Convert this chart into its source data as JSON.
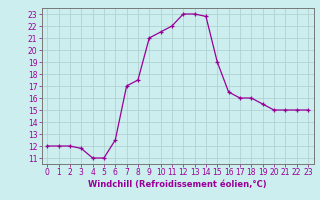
{
  "x": [
    0,
    1,
    2,
    3,
    4,
    5,
    6,
    7,
    8,
    9,
    10,
    11,
    12,
    13,
    14,
    15,
    16,
    17,
    18,
    19,
    20,
    21,
    22,
    23
  ],
  "y": [
    12,
    12,
    12,
    11.8,
    11,
    11,
    12.5,
    17,
    17.5,
    21,
    21.5,
    22,
    23,
    23,
    22.8,
    19,
    16.5,
    16,
    16,
    15.5,
    15,
    15,
    15,
    15
  ],
  "line_color": "#990099",
  "marker_color": "#990099",
  "bg_color": "#cceeee",
  "grid_color": "#aacccc",
  "xlabel": "Windchill (Refroidissement éolien,°C)",
  "xlabel_color": "#990099",
  "tick_color": "#990099",
  "spine_color": "#777777",
  "ylim": [
    10.5,
    23.5
  ],
  "xlim": [
    -0.5,
    23.5
  ],
  "yticks": [
    11,
    12,
    13,
    14,
    15,
    16,
    17,
    18,
    19,
    20,
    21,
    22,
    23
  ],
  "xticks": [
    0,
    1,
    2,
    3,
    4,
    5,
    6,
    7,
    8,
    9,
    10,
    11,
    12,
    13,
    14,
    15,
    16,
    17,
    18,
    19,
    20,
    21,
    22,
    23
  ],
  "tick_fontsize": 5.5,
  "xlabel_fontsize": 6.0
}
